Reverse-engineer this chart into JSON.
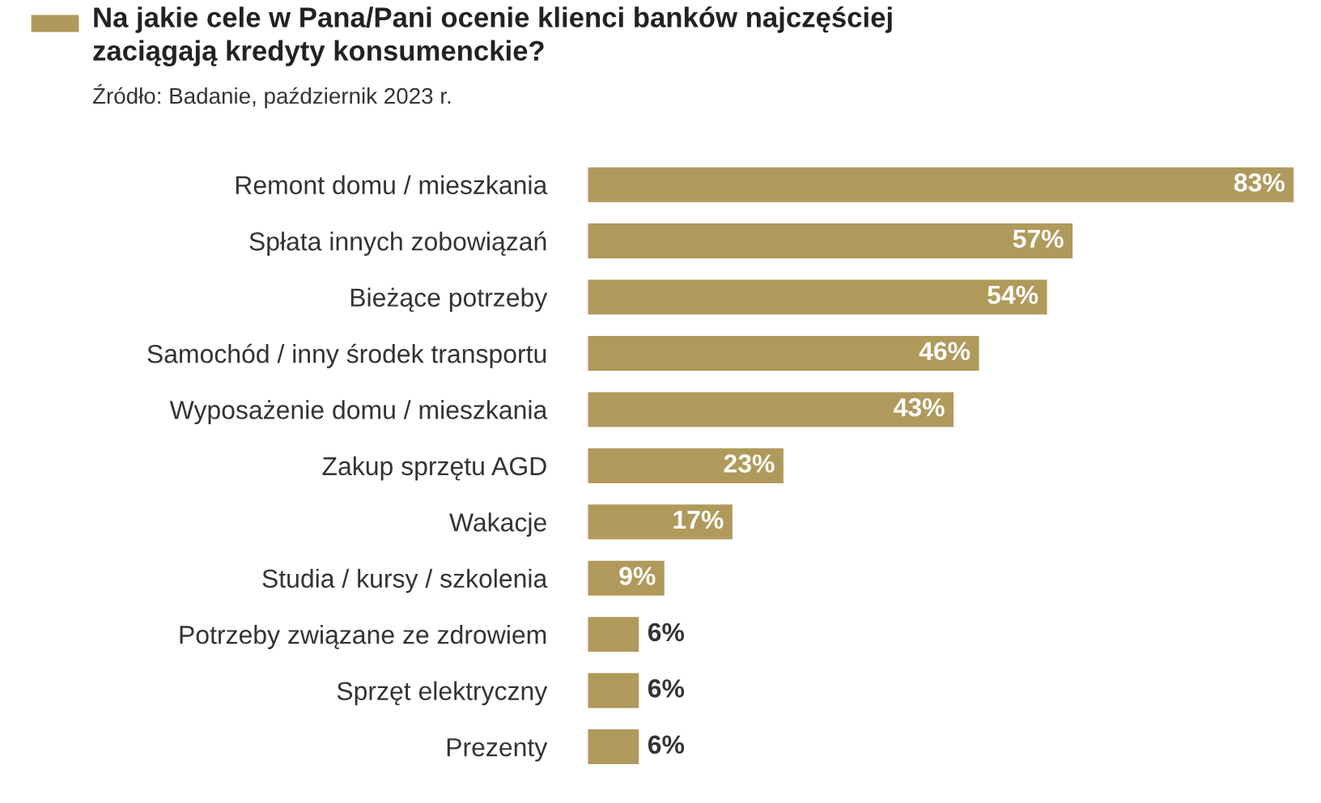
{
  "chart_data": {
    "type": "bar",
    "orientation": "horizontal",
    "title": "Na jakie cele w Pana/Pani ocenie klienci banków najczęściej\nzaciągają kredyty konsumenckie?",
    "subtitle": "Źródło: Badanie, październik 2023 r.",
    "categories": [
      "Remont domu / mieszkania",
      "Spłata innych zobowiązań",
      "Bieżące potrzeby",
      "Samochód / inny środek transportu",
      "Wyposażenie domu / mieszkania",
      "Zakup sprzętu AGD",
      "Wakacje",
      "Studia / kursy / szkolenia",
      "Potrzeby związane ze zdrowiem",
      "Sprzęt elektryczny",
      "Prezenty"
    ],
    "values": [
      83,
      57,
      54,
      46,
      43,
      23,
      17,
      9,
      6,
      6,
      6
    ],
    "value_labels": [
      "83%",
      "57%",
      "54%",
      "46%",
      "43%",
      "23%",
      "17%",
      "9%",
      "6%",
      "6%",
      "6%"
    ],
    "color": "#b09a5b",
    "grid": false,
    "legend": false
  }
}
